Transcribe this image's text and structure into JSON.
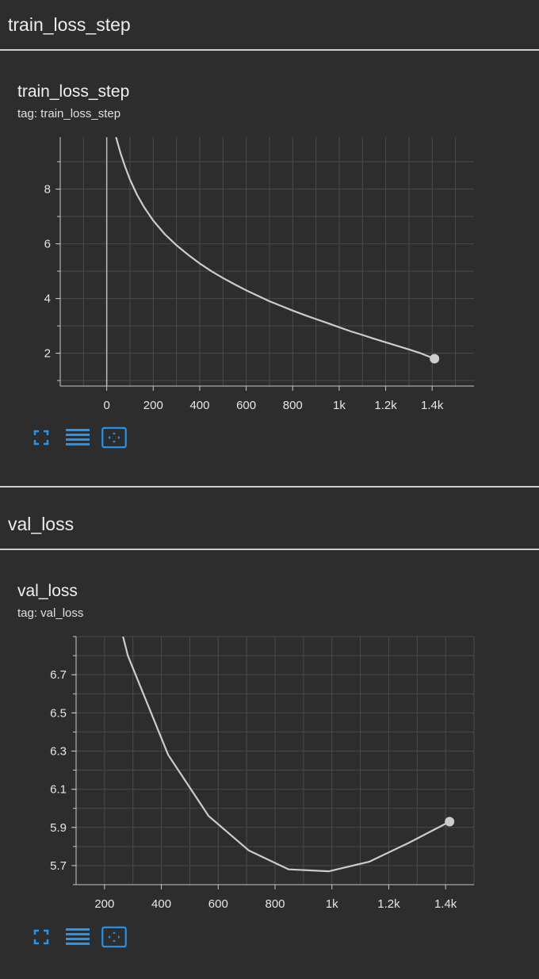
{
  "colors": {
    "accent": "#2196f3",
    "line": "#cccccc",
    "grid": "#4a4a4a",
    "axis": "#c8c8c8"
  },
  "sections": [
    {
      "header": "train_loss_step",
      "card_title": "train_loss_step",
      "card_tag": "tag: train_loss_step",
      "toolbar": {
        "fullscreen_icon": "fullscreen-icon",
        "legend_icon": "list-icon",
        "fit_icon": "fit-domain-icon"
      }
    },
    {
      "header": "val_loss",
      "card_title": "val_loss",
      "card_tag": "tag: val_loss",
      "toolbar": {
        "fullscreen_icon": "fullscreen-icon",
        "legend_icon": "list-icon",
        "fit_icon": "fit-domain-icon"
      }
    }
  ],
  "chart_data": [
    {
      "type": "line",
      "title": "train_loss_step",
      "xlim": [
        -200,
        1580
      ],
      "ylim": [
        0.8,
        9.9
      ],
      "x_ticks": [
        0,
        200,
        400,
        600,
        800,
        1000,
        1200,
        1400
      ],
      "x_tick_labels": [
        "0",
        "200",
        "400",
        "600",
        "800",
        "1k",
        "1.2k",
        "1.4k"
      ],
      "y_ticks": [
        2,
        4,
        6,
        8
      ],
      "y_tick_labels": [
        "2",
        "4",
        "6",
        "8"
      ],
      "zero_line": true,
      "grid": true,
      "series": [
        {
          "x": [
            40,
            60,
            80,
            100,
            130,
            160,
            200,
            250,
            300,
            350,
            400,
            450,
            500,
            550,
            600,
            650,
            700,
            750,
            800,
            850,
            900,
            950,
            1000,
            1050,
            1100,
            1150,
            1200,
            1250,
            1300,
            1350,
            1410
          ],
          "y": [
            9.9,
            9.3,
            8.8,
            8.35,
            7.8,
            7.35,
            6.85,
            6.35,
            5.95,
            5.6,
            5.28,
            5.0,
            4.75,
            4.52,
            4.3,
            4.1,
            3.9,
            3.73,
            3.56,
            3.4,
            3.25,
            3.1,
            2.95,
            2.8,
            2.67,
            2.53,
            2.4,
            2.27,
            2.14,
            2.0,
            1.8
          ]
        }
      ]
    },
    {
      "type": "line",
      "title": "val_loss",
      "xlim": [
        100,
        1500
      ],
      "ylim": [
        5.6,
        6.9
      ],
      "x_ticks": [
        200,
        400,
        600,
        800,
        1000,
        1200,
        1400
      ],
      "x_tick_labels": [
        "200",
        "400",
        "600",
        "800",
        "1k",
        "1.2k",
        "1.4k"
      ],
      "y_ticks": [
        5.7,
        5.9,
        6.1,
        6.3,
        6.5,
        6.7
      ],
      "y_tick_labels": [
        "5.7",
        "5.9",
        "6.1",
        "6.3",
        "6.5",
        "6.7"
      ],
      "grid": true,
      "series": [
        {
          "x": [
            265,
            282,
            424,
            566,
            707,
            848,
            990,
            1131,
            1272,
            1414
          ],
          "y": [
            6.9,
            6.8,
            6.28,
            5.96,
            5.78,
            5.68,
            5.67,
            5.72,
            5.82,
            5.93
          ]
        }
      ]
    }
  ]
}
